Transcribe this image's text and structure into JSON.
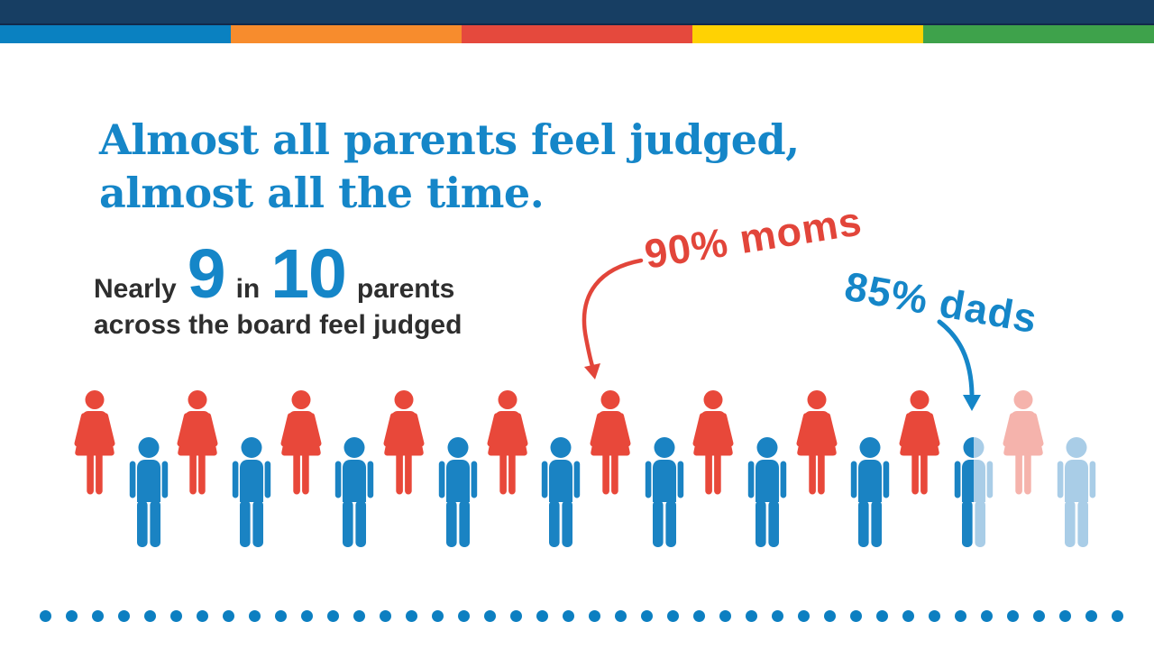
{
  "brand": {
    "navy": "#173e63",
    "stripe_colors": [
      "#0a81c1",
      "#f78c2d",
      "#e5493d",
      "#ffd203",
      "#3ea24b"
    ],
    "blue": "#1586c8",
    "red": "#e2453a",
    "dark_text": "#2e2e2e"
  },
  "headline": {
    "line1": "Almost all parents feel judged,",
    "line2": "almost all the time.",
    "color": "#1586c8"
  },
  "stat": {
    "prefix": "Nearly",
    "big1": "9",
    "mid": "in",
    "big2": "10",
    "suffix": "parents",
    "line2": "across the board feel judged",
    "number_color": "#1586c8",
    "text_color": "#2e2e2e"
  },
  "annotations": {
    "moms": {
      "label": "90% moms",
      "color": "#e2453a"
    },
    "dads": {
      "label": "85% dads",
      "color": "#1586c8"
    }
  },
  "figures": {
    "female_color": "#e8483a",
    "female_faded": "#f5b3ac",
    "male_color": "#1a83c3",
    "male_faded": "#a9cde7",
    "moms_states": [
      "full",
      "full",
      "full",
      "full",
      "full",
      "full",
      "full",
      "full",
      "full",
      "faded"
    ],
    "dads_states": [
      "full",
      "full",
      "full",
      "full",
      "full",
      "full",
      "full",
      "full",
      "half",
      "faded"
    ]
  },
  "dots": {
    "count": 42,
    "color": "#0c7fc1"
  },
  "chart_data": {
    "type": "pictograph",
    "title": "Almost all parents feel judged, almost all the time.",
    "subtitle": "Nearly 9 in 10 parents across the board feel judged",
    "series": [
      {
        "name": "moms",
        "value_pct": 90,
        "icons_total": 10,
        "icons_filled": 9
      },
      {
        "name": "dads",
        "value_pct": 85,
        "icons_total": 10,
        "icons_filled": 8.5
      }
    ],
    "legend_position": "above-figures",
    "annotations": [
      "90% moms",
      "85% dads"
    ]
  }
}
